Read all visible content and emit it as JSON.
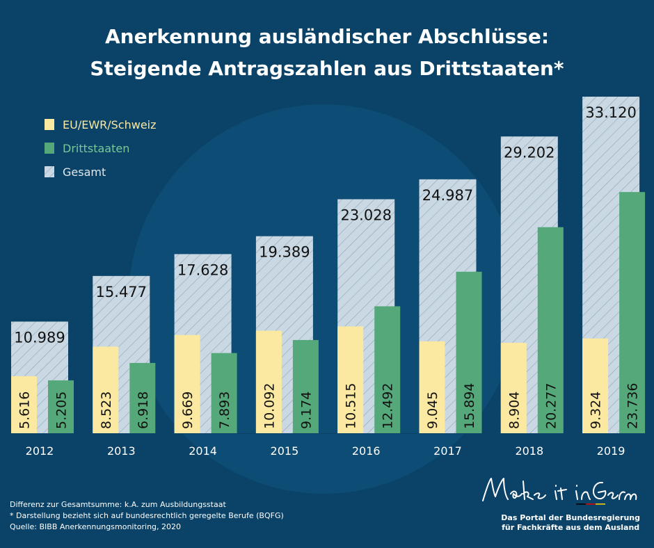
{
  "header": {
    "title_line1": "Anerkennung ausländischer Abschlüsse:",
    "title_line2": "Steigende Antragszahlen aus Drittstaaten*"
  },
  "colors": {
    "background": "#0a4367",
    "eu": "#fbe9a2",
    "dritt": "#55a87a",
    "gesamt": "#c9d8e2",
    "legend_eu_text": "#fbe9a2",
    "legend_dritt_text": "#7bc79c",
    "legend_gesamt_text": "#dfe8ee"
  },
  "chart_data": {
    "type": "bar",
    "categories": [
      "2012",
      "2013",
      "2014",
      "2015",
      "2016",
      "2017",
      "2018",
      "2019"
    ],
    "series": [
      {
        "name": "EU/EWR/Schweiz",
        "values": [
          5616,
          8523,
          9669,
          10092,
          10515,
          9045,
          8904,
          9324
        ],
        "labels": [
          "5.616",
          "8.523",
          "9.669",
          "10.092",
          "10.515",
          "9.045",
          "8.904",
          "9.324"
        ]
      },
      {
        "name": "Drittstaaten",
        "values": [
          5205,
          6918,
          7893,
          9174,
          12492,
          15894,
          20277,
          23736
        ],
        "labels": [
          "5.205",
          "6.918",
          "7.893",
          "9.174",
          "12.492",
          "15.894",
          "20.277",
          "23.736"
        ]
      },
      {
        "name": "Gesamt",
        "values": [
          10989,
          15477,
          17628,
          19389,
          23028,
          24987,
          29202,
          33120
        ],
        "labels": [
          "10.989",
          "15.477",
          "17.628",
          "19.389",
          "23.028",
          "24.987",
          "29.202",
          "33.120"
        ]
      }
    ],
    "ylim": [
      0,
      33120
    ],
    "legend_position": "top-left",
    "grid": false
  },
  "footnotes": {
    "line1": "Differenz zur Gesamtsumme: k.A. zum Ausbildungsstaat",
    "line2": "* Darstellung bezieht sich auf bundesrechtlich geregelte Berufe (BQFG)",
    "line3": "Quelle: BIBB Anerkennungsmonitoring, 2020"
  },
  "branding": {
    "signature_text": "Make it in Germany",
    "portal_line1": "Das Portal der Bundesregierung",
    "portal_line2": "für Fachkräfte aus dem Ausland"
  }
}
